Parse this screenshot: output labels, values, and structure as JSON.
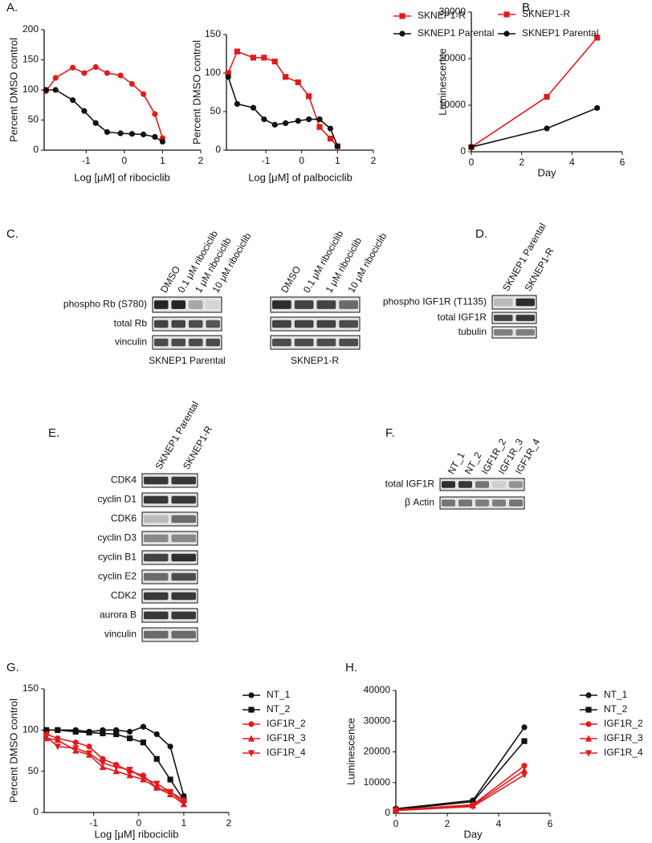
{
  "panel_labels": [
    "A.",
    "B.",
    "C.",
    "D.",
    "E.",
    "F.",
    "G.",
    "H."
  ],
  "chart_data": [
    {
      "type": "line",
      "xlabel": "Log [μM] of ribociclib",
      "ylabel": "Percent DMSO control",
      "x": [
        -2.05,
        -1.8,
        -1.35,
        -1.05,
        -0.75,
        -0.45,
        -0.1,
        0.2,
        0.5,
        0.8,
        1.0
      ],
      "xlim": [
        -2.1,
        2
      ],
      "xticks": [
        -1,
        0,
        1,
        2
      ],
      "ylim": [
        0,
        200
      ],
      "yticks": [
        0,
        50,
        100,
        150,
        200
      ],
      "series": [
        {
          "color": "#e31a1c",
          "marker": "circle",
          "values": [
            98,
            120,
            137,
            128,
            138,
            128,
            124,
            110,
            93,
            60,
            20
          ]
        },
        {
          "color": "#111111",
          "marker": "circle",
          "values": [
            100,
            100,
            83,
            65,
            45,
            30,
            28,
            27,
            26,
            22,
            14
          ]
        }
      ]
    },
    {
      "type": "line",
      "xlabel": "Log [μM] of palbociclib",
      "ylabel": "Percent DMSO control",
      "x": [
        -2.05,
        -1.8,
        -1.35,
        -1.05,
        -0.75,
        -0.45,
        -0.1,
        0.2,
        0.5,
        0.8,
        1.0
      ],
      "xlim": [
        -2.1,
        2
      ],
      "xticks": [
        -1,
        0,
        1,
        2
      ],
      "ylim": [
        0,
        150
      ],
      "yticks": [
        0,
        50,
        100,
        150
      ],
      "series": [
        {
          "name": "SKNEP1-R",
          "color": "#e31a1c",
          "marker": "square",
          "values": [
            100,
            128,
            120,
            120,
            115,
            95,
            88,
            70,
            30,
            15,
            5
          ]
        },
        {
          "name": "SKNEP1 Parental",
          "color": "#111111",
          "marker": "circle",
          "values": [
            95,
            60,
            55,
            40,
            33,
            35,
            38,
            40,
            40,
            28,
            5
          ]
        }
      ]
    },
    {
      "type": "line",
      "xlabel": "Day",
      "ylabel": "Luminescence",
      "x": [
        0,
        3,
        5
      ],
      "xlim": [
        0,
        6
      ],
      "xticks": [
        0,
        2,
        4,
        6
      ],
      "ylim": [
        0,
        30000
      ],
      "yticks": [
        0,
        10000,
        20000,
        30000
      ],
      "series": [
        {
          "name": "SKNEP1-R",
          "color": "#e31a1c",
          "marker": "square",
          "values": [
            1000,
            11800,
            24500
          ]
        },
        {
          "name": "SKNEP1 Parental",
          "color": "#111111",
          "marker": "circle",
          "values": [
            1000,
            5000,
            9400
          ]
        }
      ]
    },
    {
      "type": "line",
      "xlabel": "Log [μM] ribociclib",
      "ylabel": "Percent DMSO control",
      "x": [
        -2.05,
        -1.8,
        -1.4,
        -1.1,
        -0.8,
        -0.5,
        -0.2,
        0.1,
        0.4,
        0.7,
        1.0
      ],
      "xlim": [
        -2.1,
        2
      ],
      "xticks": [
        -1,
        0,
        1,
        2
      ],
      "ylim": [
        0,
        150
      ],
      "yticks": [
        0,
        50,
        100,
        150
      ],
      "series": [
        {
          "name": "NT_1",
          "color": "#111111",
          "marker": "circle",
          "values": [
            100,
            100,
            100,
            98,
            100,
            100,
            98,
            104,
            95,
            80,
            20
          ]
        },
        {
          "name": "NT_2",
          "color": "#111111",
          "marker": "square",
          "values": [
            100,
            100,
            98,
            97,
            96,
            95,
            90,
            85,
            65,
            40,
            15
          ]
        },
        {
          "name": "IGF1R_2",
          "color": "#e31a1c",
          "marker": "circle",
          "values": [
            95,
            90,
            85,
            80,
            65,
            58,
            50,
            45,
            30,
            25,
            15
          ]
        },
        {
          "name": "IGF1R_3",
          "color": "#e31a1c",
          "marker": "triangle",
          "values": [
            90,
            88,
            75,
            70,
            55,
            50,
            45,
            40,
            30,
            22,
            10
          ]
        },
        {
          "name": "IGF1R_4",
          "color": "#e31a1c",
          "marker": "triangle-down",
          "values": [
            92,
            80,
            78,
            72,
            60,
            55,
            52,
            42,
            35,
            25,
            12
          ]
        }
      ]
    },
    {
      "type": "line",
      "xlabel": "Day",
      "ylabel": "Luminescence",
      "x": [
        0,
        3,
        5
      ],
      "xlim": [
        0,
        6
      ],
      "xticks": [
        0,
        2,
        4,
        6
      ],
      "ylim": [
        0,
        40000
      ],
      "yticks": [
        0,
        10000,
        20000,
        30000,
        40000
      ],
      "series": [
        {
          "name": "NT_1",
          "color": "#111111",
          "marker": "circle",
          "values": [
            1500,
            4200,
            28000
          ]
        },
        {
          "name": "NT_2",
          "color": "#111111",
          "marker": "square",
          "values": [
            1200,
            3800,
            23500
          ]
        },
        {
          "name": "IGF1R_2",
          "color": "#e31a1c",
          "marker": "circle",
          "values": [
            1100,
            2800,
            15500
          ]
        },
        {
          "name": "IGF1R_3",
          "color": "#e31a1c",
          "marker": "triangle",
          "values": [
            1000,
            2500,
            14000
          ]
        },
        {
          "name": "IGF1R_4",
          "color": "#e31a1c",
          "marker": "triangle-down",
          "values": [
            900,
            2200,
            12500
          ]
        }
      ]
    }
  ],
  "blots": [
    {
      "lanes": [
        "DMSO",
        "0.1 μM ribociclib",
        "1 μM ribociclib",
        "10 μM ribociclib"
      ],
      "rows": [
        "phospho Rb (S780)",
        "total Rb",
        "vinculin"
      ],
      "caption": "SKNEP1 Parental"
    },
    {
      "lanes": [
        "DMSO",
        "0.1 μM ribociclib",
        "1 μM ribociclib",
        "10 μM ribociclib"
      ],
      "caption": "SKNEP1-R"
    },
    {
      "lanes": [
        "SKNEP1 Parental",
        "SKNEP1-R"
      ],
      "rows": [
        "phospho IGF1R (T1135)",
        "total IGF1R",
        "tubulin"
      ]
    },
    {
      "lanes": [
        "SKNEP1 Parental",
        "SKNEP1-R"
      ],
      "rows": [
        "CDK4",
        "cyclin D1",
        "CDK6",
        "cyclin D3",
        "cyclin B1",
        "cyclin E2",
        "CDK2",
        "aurora B",
        "vinculin"
      ]
    },
    {
      "lanes": [
        "NT_1",
        "NT_2",
        "IGF1R_2",
        "IGF1R_3",
        "IGF1R_4"
      ],
      "rows": [
        "total IGF1R",
        "β Actin"
      ]
    }
  ]
}
